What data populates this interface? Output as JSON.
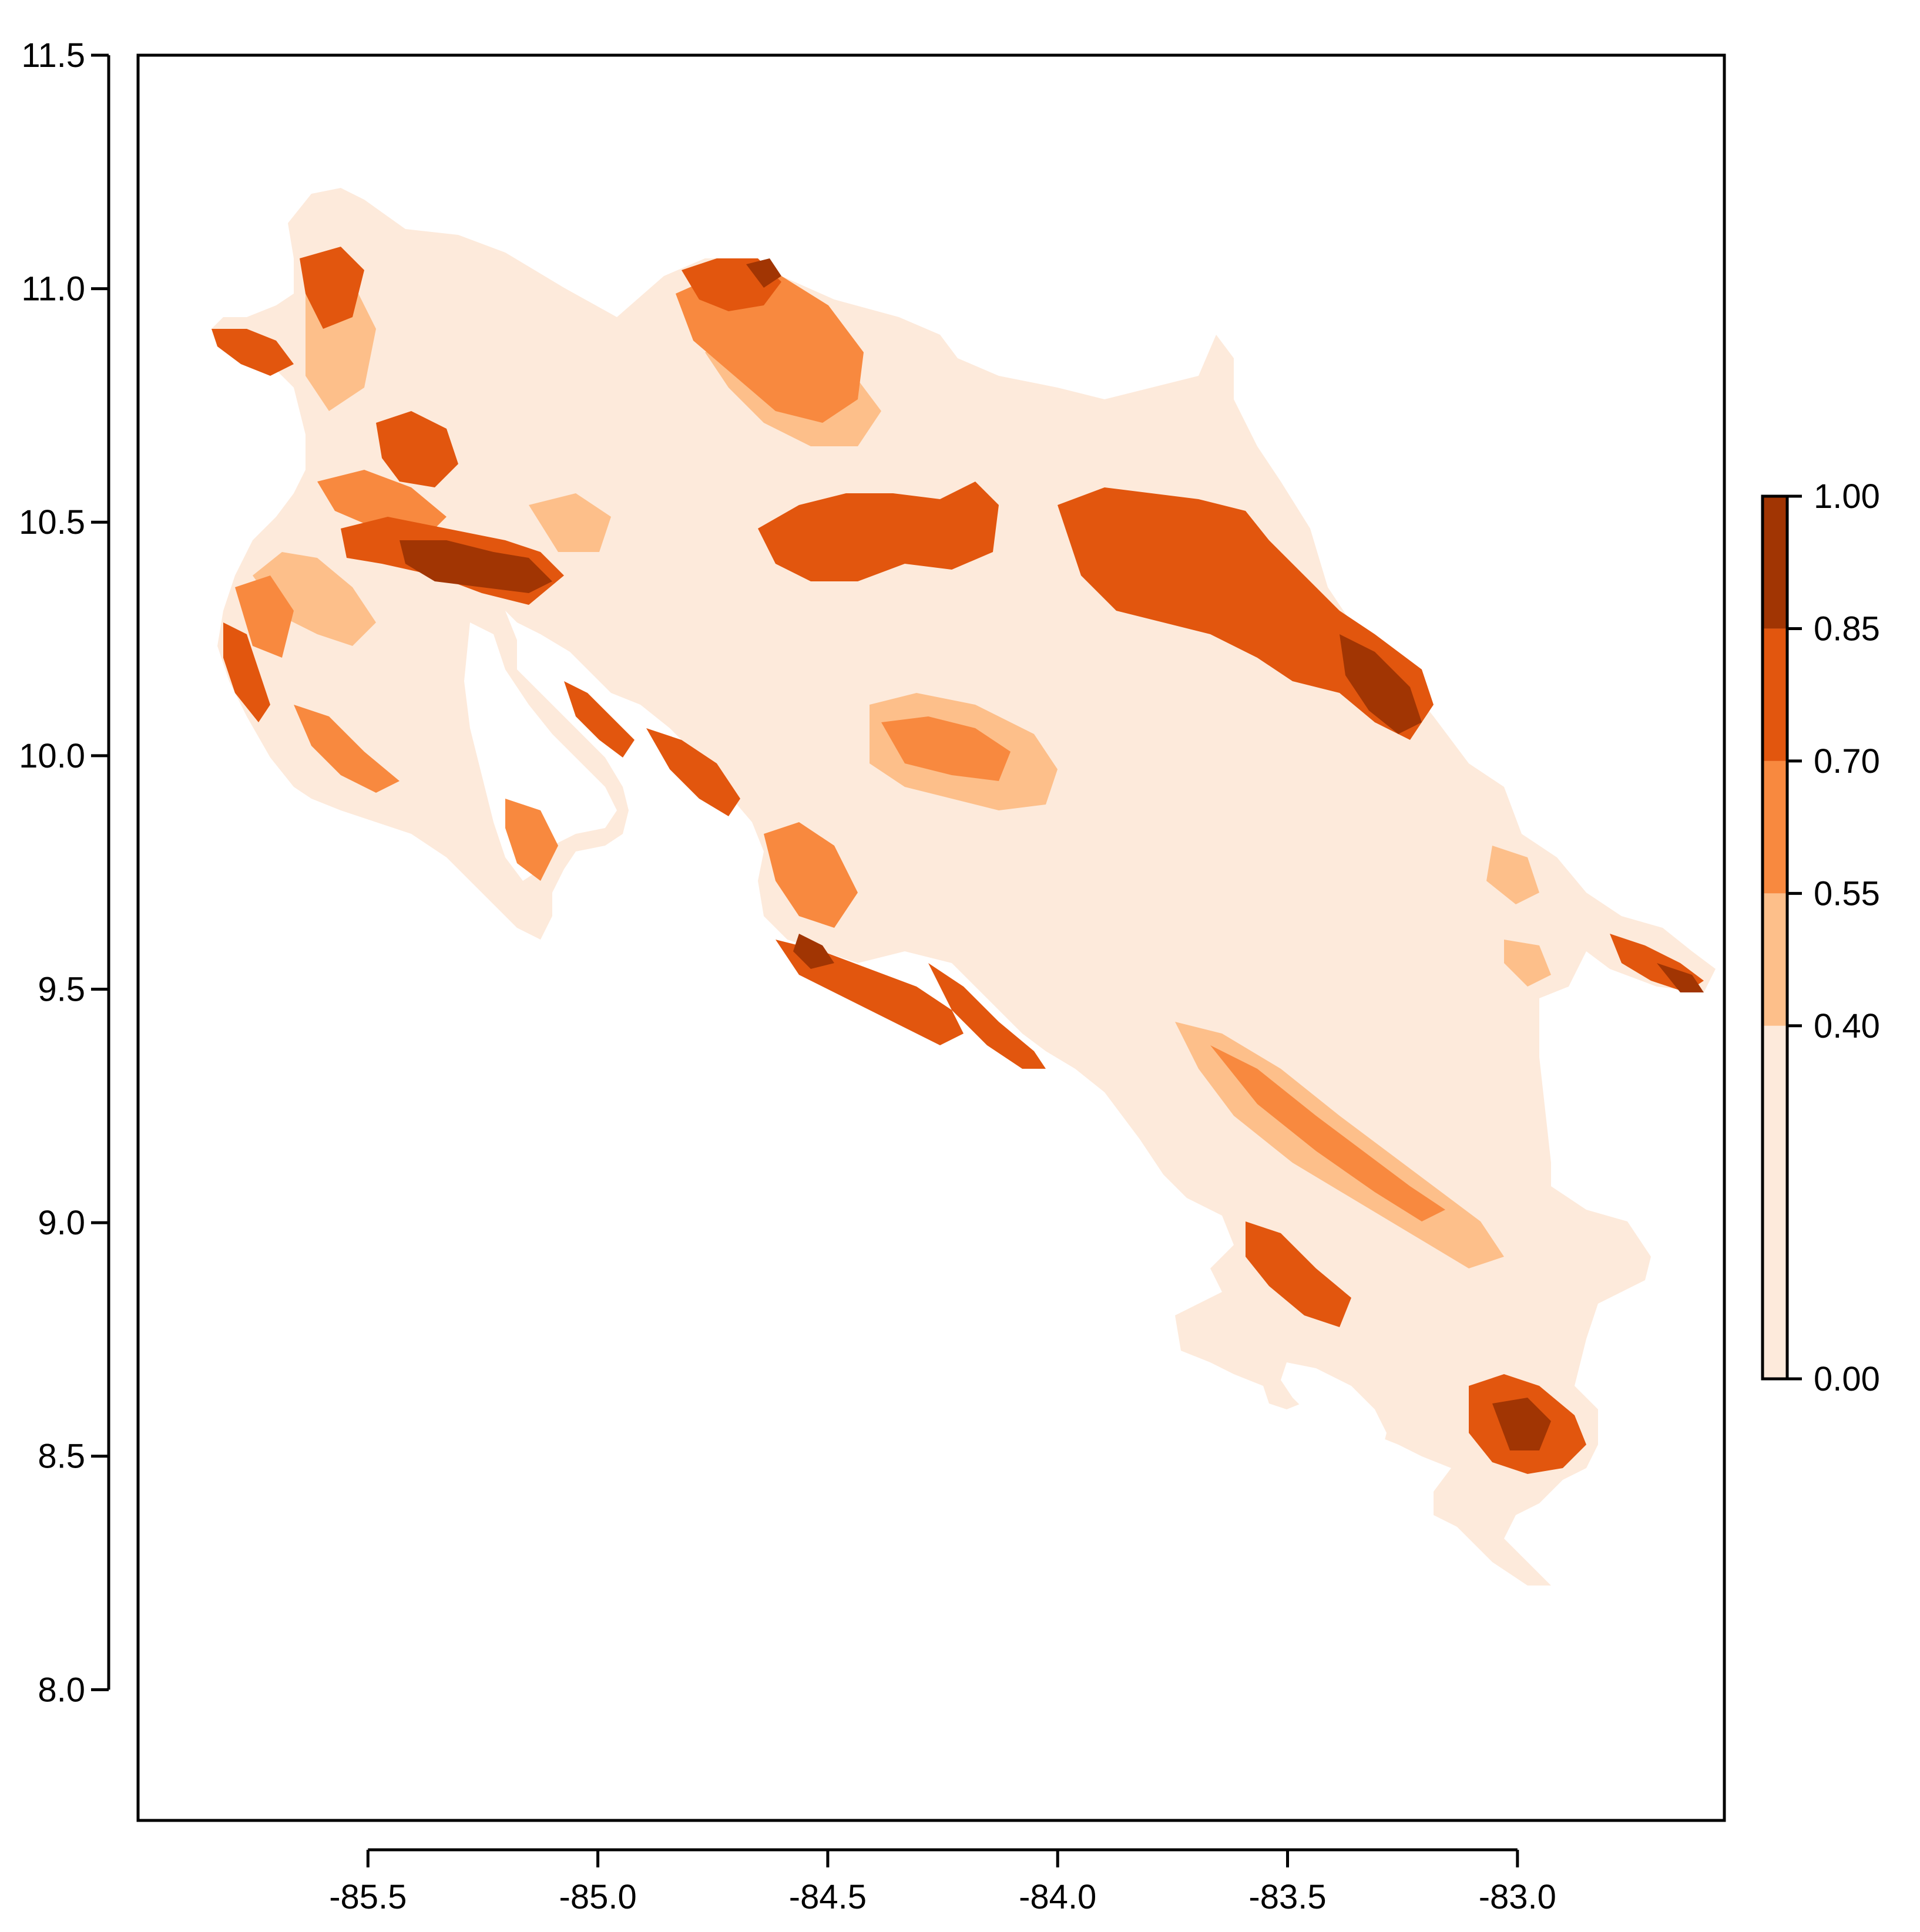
{
  "map": {
    "type": "raster-map",
    "x_axis": {
      "range": [
        -86.0,
        -82.55
      ],
      "ticks": [
        -85.5,
        -85.0,
        -84.5,
        -84.0,
        -83.5,
        -83.0
      ],
      "tick_labels": [
        "-85.5",
        "-85.0",
        "-84.5",
        "-84.0",
        "-83.5",
        "-83.0"
      ]
    },
    "y_axis": {
      "range": [
        7.72,
        11.5
      ],
      "ticks": [
        8.0,
        8.5,
        9.0,
        9.5,
        10.0,
        10.5,
        11.0,
        11.5
      ],
      "tick_labels": [
        "8.0",
        "8.5",
        "9.0",
        "9.5",
        "10.0",
        "10.5",
        "11.0",
        "11.5"
      ]
    },
    "legend": {
      "placement": "right",
      "breaks": [
        0.0,
        0.4,
        0.55,
        0.7,
        0.85,
        1.0
      ],
      "labels": [
        "0.00",
        "0.40",
        "0.55",
        "0.70",
        "0.85",
        "1.00"
      ],
      "class_colors": [
        "#fdeadb",
        "#fdbf8a",
        "#f8893f",
        "#e2560e",
        "#a13503"
      ]
    },
    "colors": {
      "background": "#ffffff",
      "class_0": "#fdeadb",
      "class_1": "#fdbf8a",
      "class_2": "#f8893f",
      "class_3": "#e2560e",
      "class_4": "#a13503"
    }
  }
}
